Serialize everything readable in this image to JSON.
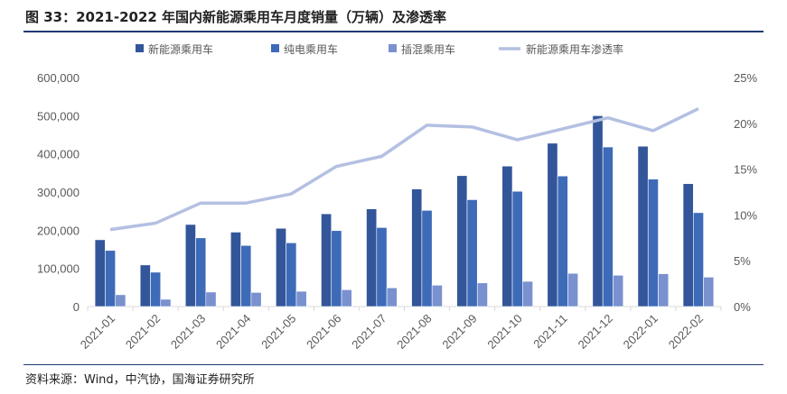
{
  "title": "图 33：2021-2022 年国内新能源乘用车月度销量（万辆）及渗透率",
  "source": "资料来源：Wind，中汽协，国海证券研究所",
  "chart_data": {
    "type": "bar",
    "categories": [
      "2021-01",
      "2021-02",
      "2021-03",
      "2021-04",
      "2021-05",
      "2021-06",
      "2021-07",
      "2021-08",
      "2021-09",
      "2021-10",
      "2021-11",
      "2021-12",
      "2022-01",
      "2022-02"
    ],
    "series": [
      {
        "name": "新能源乘用车",
        "type": "bar",
        "axis": "left",
        "color": "#33569a",
        "values": [
          175000,
          109000,
          215000,
          195000,
          205000,
          243000,
          256000,
          308000,
          343000,
          368000,
          428000,
          500000,
          420000,
          322000
        ]
      },
      {
        "name": "纯电乘用车",
        "type": "bar",
        "axis": "left",
        "color": "#3e6bb8",
        "values": [
          147000,
          90000,
          180000,
          160000,
          167000,
          199000,
          207000,
          252000,
          280000,
          302000,
          342000,
          418000,
          334000,
          246000
        ]
      },
      {
        "name": "插混乘用车",
        "type": "bar",
        "axis": "left",
        "color": "#7a91cf",
        "values": [
          31000,
          19000,
          38000,
          37000,
          40000,
          44000,
          49000,
          56000,
          62000,
          66000,
          87000,
          82000,
          86000,
          77000
        ]
      },
      {
        "name": "新能源乘用车渗透率",
        "type": "line",
        "axis": "right",
        "color": "#b4c0e2",
        "values": [
          8.4,
          9.1,
          11.3,
          11.3,
          12.3,
          15.3,
          16.4,
          19.8,
          19.6,
          18.2,
          19.4,
          20.6,
          19.2,
          21.6
        ]
      }
    ],
    "yleft": {
      "ylim": [
        0,
        600000
      ],
      "ticks": [
        "0",
        "100,000",
        "200,000",
        "300,000",
        "400,000",
        "500,000",
        "600,000"
      ]
    },
    "yright": {
      "ylim": [
        0,
        25
      ],
      "ticks": [
        "0%",
        "5%",
        "10%",
        "15%",
        "20%",
        "25%"
      ]
    },
    "legend": "top"
  }
}
